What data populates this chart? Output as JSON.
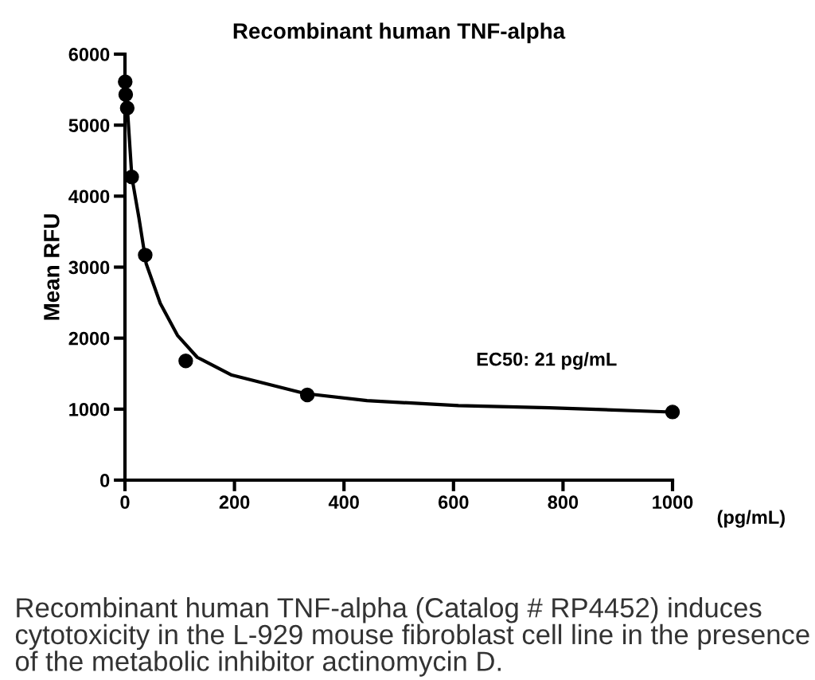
{
  "chart_data": {
    "type": "scatter",
    "title": "Recombinant human TNF-alpha",
    "xlabel": "(pg/mL)",
    "ylabel": "Mean RFU",
    "xlim": [
      0,
      1000
    ],
    "xticks": [
      0,
      200,
      400,
      600,
      800,
      1000
    ],
    "ylim": [
      0,
      6000
    ],
    "yticks": [
      0,
      1000,
      2000,
      3000,
      4000,
      5000,
      6000
    ],
    "grid": false,
    "legend": false,
    "series": [
      {
        "color": "#000000",
        "marker": "circle",
        "x": [
          0.46,
          1.37,
          4.1,
          12.3,
          37,
          111,
          333,
          1000
        ],
        "values": [
          5610,
          5430,
          5240,
          4270,
          3170,
          1680,
          1200,
          960
        ]
      },
      {
        "type": "line",
        "color": "#000000",
        "marker": "none",
        "line_style": "solid",
        "x": [
          0.5,
          5,
          12.6,
          25.6,
          38.7,
          64.5,
          95.8,
          132,
          195,
          329,
          442,
          609,
          775,
          996
        ],
        "values": [
          5350,
          5170,
          4270,
          3690,
          3050,
          2490,
          2040,
          1730,
          1480,
          1220,
          1120,
          1050,
          1020,
          960
        ]
      }
    ],
    "annotations": [
      "EC50: 21 pg/mL",
      "Recombinant human TNF-alpha (Catalog # RP4452) induces cytotoxicity in the L-929 mouse fibroblast cell line in the presence of the metabolic inhibitor actinomycin D."
    ]
  }
}
